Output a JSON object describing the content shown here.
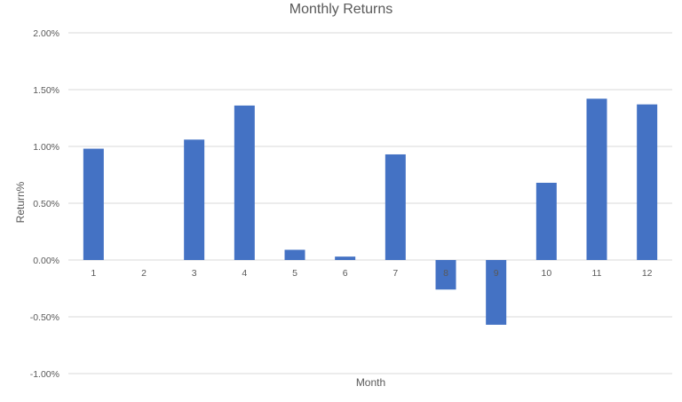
{
  "chart_data": {
    "type": "bar",
    "title": "Monthly Returns",
    "xlabel": "Month",
    "ylabel": "Return%",
    "categories": [
      "1",
      "2",
      "3",
      "4",
      "5",
      "6",
      "7",
      "8",
      "9",
      "10",
      "11",
      "12"
    ],
    "values": [
      0.98,
      0.0,
      1.06,
      1.36,
      0.09,
      0.03,
      0.93,
      -0.26,
      -0.57,
      0.68,
      1.42,
      1.37
    ],
    "value_unit": "percent",
    "ylim": [
      -1.0,
      2.0
    ],
    "yticks": [
      2.0,
      1.5,
      1.0,
      0.5,
      0.0,
      -0.5,
      -1.0
    ],
    "ytick_labels": [
      "2.00%",
      "1.50%",
      "1.00%",
      "0.50%",
      "0.00%",
      "-0.50%",
      "-1.00%"
    ],
    "grid": "horizontal",
    "legend": "none",
    "colors": {
      "bar": "#4472C4",
      "grid": "#D9D9D9",
      "text": "#595959"
    }
  }
}
